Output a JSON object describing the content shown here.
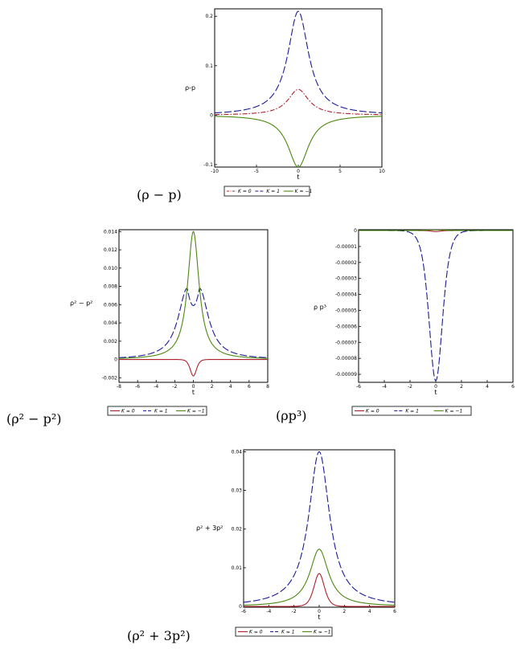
{
  "colors": {
    "K0": "#b0202a",
    "K1": "#1a1a9a",
    "Km1": "#4a8a10"
  },
  "legend": [
    "K = 0",
    "K = 1",
    "K = −1"
  ],
  "charts": [
    {
      "id": "rho-minus-p",
      "caption": "(ρ − p)",
      "ylabel": "ρ-p",
      "xlabel": "t",
      "xlim": [
        -10,
        10
      ],
      "ylim": [
        -0.105,
        0.215
      ],
      "xticks": [
        -10,
        -5,
        0,
        5,
        10
      ],
      "xticklabels": [
        "-10",
        "-5",
        "0",
        "5",
        "10"
      ],
      "yticks": [
        -0.1,
        0,
        0.1,
        0.2
      ],
      "yticklabels": [
        "-0.1",
        "0",
        "0.1",
        "0.2"
      ],
      "tmin": -10,
      "tmax": 10,
      "series": [
        {
          "key": "K0",
          "label": "K = 0",
          "style": "dashdot",
          "shape": "lorentz",
          "amp": 0.052,
          "w": 1.5
        },
        {
          "key": "K1",
          "label": "K = 1",
          "style": "dash",
          "shape": "lorentz",
          "amp": 0.21,
          "w": 1.5
        },
        {
          "key": "Km1",
          "label": "K = −1",
          "style": "solid",
          "shape": "lorentz",
          "amp": -0.105,
          "w": 1.5
        }
      ]
    },
    {
      "id": "rho2-minus-p2",
      "caption": "(ρ² − p²)",
      "ylabel": "ρ² − p²",
      "xlabel": "t",
      "xlim": [
        -8,
        8
      ],
      "ylim": [
        -0.0025,
        0.0142
      ],
      "xticks": [
        -8,
        -6,
        -4,
        -2,
        0,
        2,
        4,
        6,
        8
      ],
      "xticklabels": [
        "-8",
        "-6",
        "-4",
        "-2",
        "0",
        "2",
        "4",
        "6",
        "8"
      ],
      "yticks": [
        -0.002,
        0,
        0.002,
        0.004,
        0.006,
        0.008,
        0.01,
        0.012,
        0.014
      ],
      "yticklabels": [
        "-0.002",
        "0",
        "0.002",
        "0.004",
        "0.006",
        "0.008",
        "0.010",
        "0.012",
        "0.014"
      ],
      "tmin": -8,
      "tmax": 8,
      "series": [
        {
          "key": "K0",
          "label": "K = 0",
          "style": "solid",
          "shape": "sech2",
          "amp": -0.0018,
          "w": 0.45
        },
        {
          "key": "K1",
          "label": "K = 1",
          "style": "dash",
          "shape": "double",
          "amp": 0.0078,
          "w": 1.5,
          "sep": 0.65,
          "dip": 0.0059
        },
        {
          "key": "Km1",
          "label": "K = −1",
          "style": "solid",
          "shape": "lorentz",
          "amp": 0.014,
          "w": 0.75
        }
      ]
    },
    {
      "id": "rho-p3",
      "caption": "(ρp³)",
      "ylabel": "ρ p³",
      "xlabel": "t",
      "xlim": [
        -6,
        6
      ],
      "ylim": [
        -9.5e-05,
        5e-07
      ],
      "xticks": [
        -6,
        -4,
        -2,
        0,
        2,
        4,
        6
      ],
      "xticklabels": [
        "-6",
        "-4",
        "-2",
        "0",
        "2",
        "4",
        "6"
      ],
      "yticks": [
        0,
        -1e-05,
        -2e-05,
        -3e-05,
        -4e-05,
        -5e-05,
        -6e-05,
        -7e-05,
        -8e-05,
        -9e-05
      ],
      "yticklabels": [
        "0",
        "-0.00001",
        "-0.00002",
        "-0.00003",
        "-0.00004",
        "-0.00005",
        "-0.00006",
        "-0.00007",
        "-0.00008",
        "-0.00009"
      ],
      "tmin": -6,
      "tmax": 6,
      "series": [
        {
          "key": "K0",
          "label": "K = 0",
          "style": "solid",
          "shape": "sech2",
          "amp": -6e-07,
          "w": 0.5
        },
        {
          "key": "K1",
          "label": "K = 1",
          "style": "dash",
          "shape": "sech2",
          "amp": -9.4e-05,
          "w": 0.7
        },
        {
          "key": "Km1",
          "label": "K = −1",
          "style": "solid",
          "shape": "sech2",
          "amp": 4e-07,
          "w": 0.8
        }
      ]
    },
    {
      "id": "rho2-plus-3p2",
      "caption": "(ρ² + 3p²)",
      "ylabel": "ρ² + 3p²",
      "xlabel": "t",
      "xlim": [
        -6,
        6
      ],
      "ylim": [
        -0.0002,
        0.0405
      ],
      "xticks": [
        -6,
        -4,
        -2,
        0,
        2,
        4,
        6
      ],
      "xticklabels": [
        "-6",
        "-4",
        "-2",
        "0",
        "2",
        "4",
        "6"
      ],
      "yticks": [
        0,
        0.01,
        0.02,
        0.03,
        0.04
      ],
      "yticklabels": [
        "0",
        "0.01",
        "0.02",
        "0.03",
        "0.04"
      ],
      "tmin": -6,
      "tmax": 6,
      "series": [
        {
          "key": "K0",
          "label": "K = 0",
          "style": "solid",
          "shape": "sech2",
          "amp": 0.0085,
          "w": 0.55
        },
        {
          "key": "K1",
          "label": "K = 1",
          "style": "dash",
          "shape": "lorentz",
          "amp": 0.04,
          "w": 1.0
        },
        {
          "key": "Km1",
          "label": "K = −1",
          "style": "solid",
          "shape": "lorentz",
          "amp": 0.0148,
          "w": 0.9
        }
      ]
    }
  ],
  "chart_data": [
    {
      "type": "line",
      "title": "",
      "xlabel": "t",
      "ylabel": "ρ-p",
      "xlim": [
        -10,
        10
      ],
      "ylim": [
        -0.105,
        0.215
      ],
      "series": [
        {
          "name": "K = 0",
          "x": [
            -10,
            -5,
            -2,
            -1,
            0,
            1,
            2,
            5,
            10
          ],
          "y": [
            0.001,
            0.004,
            0.019,
            0.036,
            0.052,
            0.036,
            0.019,
            0.004,
            0.001
          ]
        },
        {
          "name": "K = 1",
          "x": [
            -10,
            -5,
            -2,
            -1,
            0,
            1,
            2,
            5,
            10
          ],
          "y": [
            0.005,
            0.017,
            0.076,
            0.145,
            0.21,
            0.145,
            0.076,
            0.017,
            0.005
          ]
        },
        {
          "name": "K = −1",
          "x": [
            -10,
            -5,
            -2,
            -1,
            0,
            1,
            2,
            5,
            10
          ],
          "y": [
            -0.002,
            -0.009,
            -0.038,
            -0.073,
            -0.105,
            -0.073,
            -0.038,
            -0.009,
            -0.002
          ]
        }
      ]
    },
    {
      "type": "line",
      "title": "",
      "xlabel": "t",
      "ylabel": "ρ² − p²",
      "xlim": [
        -8,
        8
      ],
      "ylim": [
        -0.0025,
        0.0142
      ],
      "series": [
        {
          "name": "K = 0",
          "x": [
            -8,
            -2,
            -1,
            0,
            1,
            2,
            8
          ],
          "y": [
            0,
            0,
            -0.0002,
            -0.0018,
            -0.0002,
            0,
            0
          ]
        },
        {
          "name": "K = 1",
          "x": [
            -8,
            -4,
            -2,
            -0.65,
            0,
            0.65,
            2,
            4,
            8
          ],
          "y": [
            0.0001,
            0.0008,
            0.0029,
            0.0078,
            0.0059,
            0.0078,
            0.0029,
            0.0008,
            0.0001
          ]
        },
        {
          "name": "K = −1",
          "x": [
            -8,
            -4,
            -2,
            -1,
            0,
            1,
            2,
            4,
            8
          ],
          "y": [
            0.0001,
            0.0005,
            0.0017,
            0.0051,
            0.014,
            0.0051,
            0.0017,
            0.0005,
            0.0001
          ]
        }
      ]
    },
    {
      "type": "line",
      "title": "",
      "xlabel": "t",
      "ylabel": "ρ p³",
      "xlim": [
        -6,
        6
      ],
      "ylim": [
        -9.5e-05,
        5e-07
      ],
      "series": [
        {
          "name": "K = 0",
          "x": [
            -6,
            -1,
            0,
            1,
            6
          ],
          "y": [
            0,
            0,
            -6e-07,
            0,
            0
          ]
        },
        {
          "name": "K = 1",
          "x": [
            -6,
            -2,
            -1,
            -0.5,
            0,
            0.5,
            1,
            2,
            6
          ],
          "y": [
            0,
            -1e-06,
            -1.2e-05,
            -4.2e-05,
            -9.4e-05,
            -4.2e-05,
            -1.2e-05,
            -1e-06,
            0
          ]
        },
        {
          "name": "K = −1",
          "x": [
            -6,
            -1,
            0,
            1,
            6
          ],
          "y": [
            0,
            1e-07,
            4e-07,
            1e-07,
            0
          ]
        }
      ]
    },
    {
      "type": "line",
      "title": "",
      "xlabel": "t",
      "ylabel": "ρ² + 3p²",
      "xlim": [
        -6,
        6
      ],
      "ylim": [
        -0.0002,
        0.0405
      ],
      "series": [
        {
          "name": "K = 0",
          "x": [
            -6,
            -2,
            -1,
            0,
            1,
            2,
            6
          ],
          "y": [
            0,
            0.0003,
            0.0037,
            0.0085,
            0.0037,
            0.0003,
            0
          ]
        },
        {
          "name": "K = 1",
          "x": [
            -6,
            -4,
            -2,
            -1,
            0,
            1,
            2,
            4,
            6
          ],
          "y": [
            0.0011,
            0.0024,
            0.008,
            0.02,
            0.04,
            0.02,
            0.008,
            0.0024,
            0.0011
          ]
        },
        {
          "name": "K = −1",
          "x": [
            -6,
            -4,
            -2,
            -1,
            0,
            1,
            2,
            4,
            6
          ],
          "y": [
            0.0003,
            0.0007,
            0.0025,
            0.0066,
            0.0148,
            0.0066,
            0.0025,
            0.0007,
            0.0003
          ]
        }
      ]
    }
  ]
}
